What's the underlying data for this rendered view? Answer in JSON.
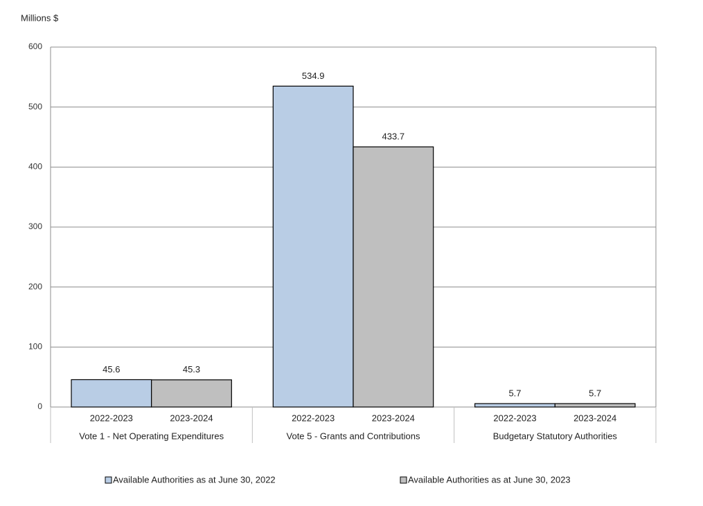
{
  "chart_data": {
    "type": "bar",
    "ylabel": "Millions  $",
    "categories": [
      "Vote 1 - Net Operating Expenditures",
      "Vote 5 - Grants and Contributions",
      "Budgetary Statutory Authorities"
    ],
    "subcategories": [
      "2022-2023",
      "2023-2024"
    ],
    "series": [
      {
        "name": "Available Authorities as at June 30, 2022",
        "color": "#b9cde5",
        "values": [
          45.6,
          534.9,
          5.7
        ]
      },
      {
        "name": "Available Authorities as at June 30, 2023",
        "color": "#bfbfbf",
        "values": [
          45.3,
          433.7,
          5.7
        ]
      }
    ],
    "ylim": [
      0,
      600
    ],
    "yticks": [
      0,
      100,
      200,
      300,
      400,
      500,
      600
    ],
    "grid": true,
    "legend": "bottom"
  }
}
